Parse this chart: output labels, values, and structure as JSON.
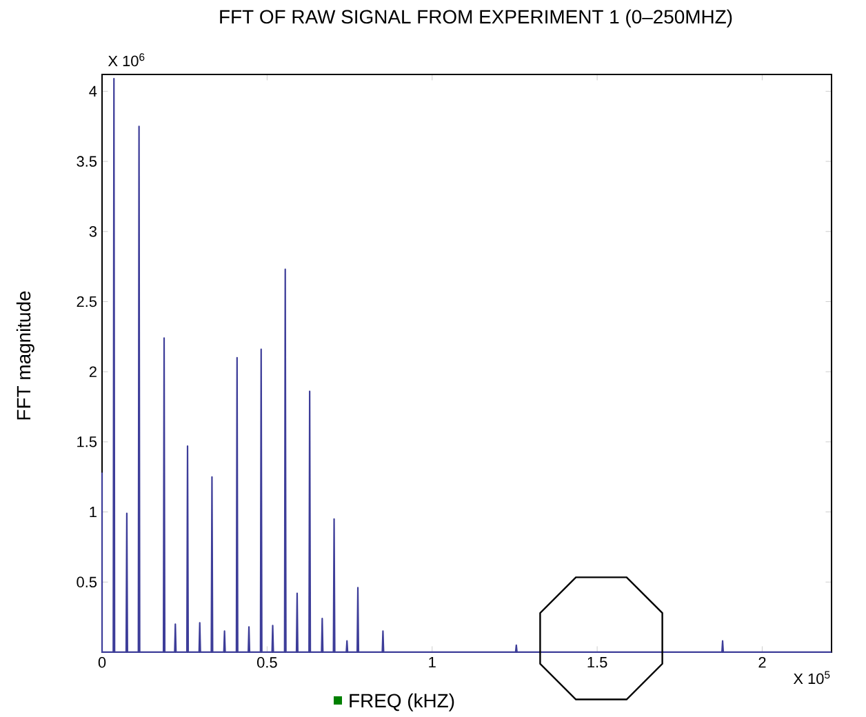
{
  "chart_data": {
    "type": "line",
    "title": "FFT OF RAW SIGNAL FROM EXPERIMENT 1 (0–250MHZ)",
    "xlabel": "FREQ (kHZ)",
    "ylabel": "FFT magnitude",
    "annotations": [
      "X 10$^{6}$",
      "X 10$^{5}$"
    ],
    "series": [
      {
        "color": "#3d3d99",
        "x": [
          0,
          0,
          0.034,
          0.036,
          0.038,
          0.073,
          0.075,
          0.077,
          0.11,
          0.112,
          0.114,
          0.186,
          0.188,
          0.19,
          0.22,
          0.222,
          0.224,
          0.257,
          0.259,
          0.261,
          0.294,
          0.296,
          0.298,
          0.331,
          0.333,
          0.335,
          0.369,
          0.371,
          0.373,
          0.407,
          0.409,
          0.411,
          0.443,
          0.445,
          0.447,
          0.48,
          0.482,
          0.484,
          0.515,
          0.517,
          0.519,
          0.553,
          0.555,
          0.557,
          0.589,
          0.591,
          0.593,
          0.627,
          0.629,
          0.631,
          0.665,
          0.667,
          0.669,
          0.701,
          0.703,
          0.705,
          0.74,
          0.742,
          0.744,
          0.773,
          0.775,
          0.777,
          0.849,
          0.851,
          0.853,
          1.253,
          1.255,
          1.257,
          1.878,
          1.88,
          1.882,
          2.21
        ],
        "values": [
          1.28,
          0,
          0,
          4.09,
          0,
          0,
          0.99,
          0,
          0,
          3.75,
          0,
          0,
          2.24,
          0,
          0,
          0.2,
          0,
          0,
          1.47,
          0,
          0,
          0.21,
          0,
          0,
          1.25,
          0,
          0,
          0.15,
          0,
          0,
          2.1,
          0,
          0,
          0.18,
          0,
          0,
          2.16,
          0,
          0,
          0.19,
          0,
          0,
          2.73,
          0,
          0,
          0.42,
          0,
          0,
          1.86,
          0,
          0,
          0.24,
          0,
          0,
          0.95,
          0,
          0,
          0.08,
          0,
          0,
          0.46,
          0,
          0,
          0.15,
          0,
          0,
          0.05,
          0,
          0,
          0.08,
          0,
          0
        ]
      }
    ],
    "xlim": [
      0,
      2.21
    ],
    "ylim": [
      0,
      4.12
    ],
    "xticks": [
      0,
      0.5,
      1,
      1.5,
      2
    ],
    "yticks": [
      0.5,
      1,
      1.5,
      2,
      2.5,
      3,
      3.5,
      4
    ],
    "grid": false,
    "marker": "none",
    "line_style": "solid"
  }
}
